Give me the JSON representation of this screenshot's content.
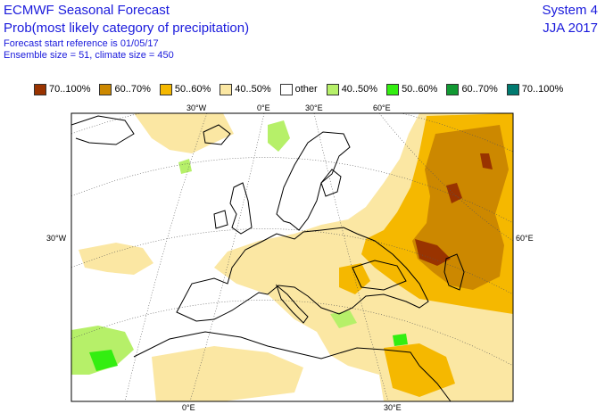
{
  "header": {
    "title": "ECMWF Seasonal Forecast",
    "subtitle": "Prob(most likely category of precipitation)",
    "start_ref": "Forecast start reference is 01/05/17",
    "ensemble": "Ensemble size = 51, climate size = 450",
    "system": "System 4",
    "season": "JJA 2017"
  },
  "legend": [
    {
      "label": "70..100%",
      "color": "#993300"
    },
    {
      "label": "60..70%",
      "color": "#cc8800"
    },
    {
      "label": "50..60%",
      "color": "#f5b800"
    },
    {
      "label": "40..50%",
      "color": "#fbe7a3"
    },
    {
      "label": "other",
      "color": "#ffffff"
    },
    {
      "label": "40..50%",
      "color": "#b6f069"
    },
    {
      "label": "50..60%",
      "color": "#33ee11"
    },
    {
      "label": "60..70%",
      "color": "#119933"
    },
    {
      "label": "70..100%",
      "color": "#007a70"
    }
  ],
  "grid_labels": {
    "top_30w": "30°W",
    "top_0e": "0°E",
    "top_30e": "30°E",
    "top_60e": "60°E",
    "left_30w": "30°W",
    "right_60e": "60°E",
    "bottom_0e": "0°E",
    "bottom_30e": "30°E"
  }
}
